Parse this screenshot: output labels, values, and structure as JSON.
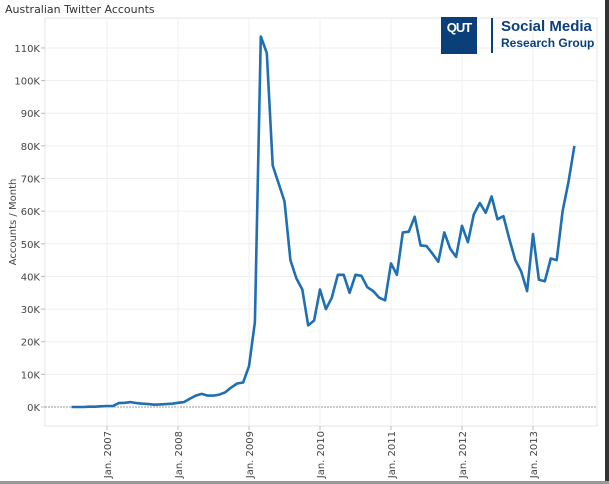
{
  "logo": {
    "mark": "QUT",
    "line1": "Social Media",
    "line2": "Research Group",
    "color": "#0a3f7a"
  },
  "chart_data": {
    "type": "line",
    "title": "Australian Twitter Accounts",
    "xlabel": "",
    "ylabel": "Accounts / Month",
    "ylim": [
      -5000,
      117000
    ],
    "yticks": [
      0,
      10000,
      20000,
      30000,
      40000,
      50000,
      60000,
      70000,
      80000,
      90000,
      100000,
      110000
    ],
    "ytick_labels": [
      "0K",
      "10K",
      "20K",
      "30K",
      "40K",
      "50K",
      "60K",
      "70K",
      "80K",
      "90K",
      "100K",
      "110K"
    ],
    "xtick_labels": [
      "Jan. 2007",
      "Jan. 2008",
      "Jan. 2009",
      "Jan. 2010",
      "Jan. 2011",
      "Jan. 2012",
      "Jan. 2013"
    ],
    "x_start": "2006-07",
    "x_interval": "month",
    "grid": true,
    "color": "#1f6fb2",
    "values": [
      0,
      0,
      0,
      100,
      100,
      200,
      300,
      300,
      1200,
      1300,
      1500,
      1200,
      1000,
      900,
      700,
      800,
      900,
      1000,
      1300,
      1500,
      2500,
      3500,
      4000,
      3500,
      3500,
      3800,
      4500,
      6000,
      7200,
      7500,
      12500,
      26000,
      113500,
      108500,
      74000,
      68500,
      63000,
      45000,
      39500,
      36000,
      25000,
      26500,
      36000,
      30000,
      33500,
      40500,
      40500,
      35000,
      40500,
      40200,
      36700,
      35500,
      33500,
      32700,
      44000,
      40500,
      53500,
      53700,
      58300,
      49500,
      49300,
      47000,
      44500,
      53500,
      48500,
      46000,
      55500,
      50500,
      59000,
      62500,
      59500,
      64500,
      57500,
      58500,
      51500,
      45000,
      41500,
      35500,
      53000,
      39000,
      38500,
      45500,
      45000,
      60000,
      69000,
      80000
    ]
  }
}
